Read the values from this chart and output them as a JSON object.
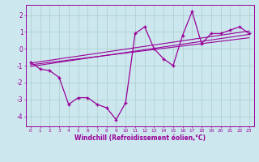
{
  "xlabel": "Windchill (Refroidissement éolien,°C)",
  "xlim": [
    -0.5,
    23.5
  ],
  "ylim": [
    -4.6,
    2.6
  ],
  "yticks": [
    -4,
    -3,
    -2,
    -1,
    0,
    1,
    2
  ],
  "xticks": [
    0,
    1,
    2,
    3,
    4,
    5,
    6,
    7,
    8,
    9,
    10,
    11,
    12,
    13,
    14,
    15,
    16,
    17,
    18,
    19,
    20,
    21,
    22,
    23
  ],
  "bg_color": "#cce8ee",
  "line_color": "#990099",
  "grid_color": "#aacccc",
  "data_x": [
    0,
    1,
    2,
    3,
    4,
    5,
    6,
    7,
    8,
    9,
    10,
    11,
    12,
    13,
    14,
    15,
    16,
    17,
    18,
    19,
    20,
    21,
    22,
    23
  ],
  "data_y": [
    -0.8,
    -1.2,
    -1.3,
    -1.7,
    -3.3,
    -2.9,
    -2.9,
    -3.3,
    -3.5,
    -4.2,
    -3.2,
    0.9,
    1.3,
    0.0,
    -0.6,
    -1.0,
    0.8,
    2.2,
    0.3,
    0.9,
    0.9,
    1.1,
    1.3,
    0.9
  ],
  "trend1_x": [
    0,
    23
  ],
  "trend1_y": [
    -1.05,
    0.85
  ],
  "trend2_x": [
    0,
    23
  ],
  "trend2_y": [
    -0.85,
    1.05
  ],
  "trend3_x": [
    0,
    23
  ],
  "trend3_y": [
    -0.95,
    0.65
  ]
}
